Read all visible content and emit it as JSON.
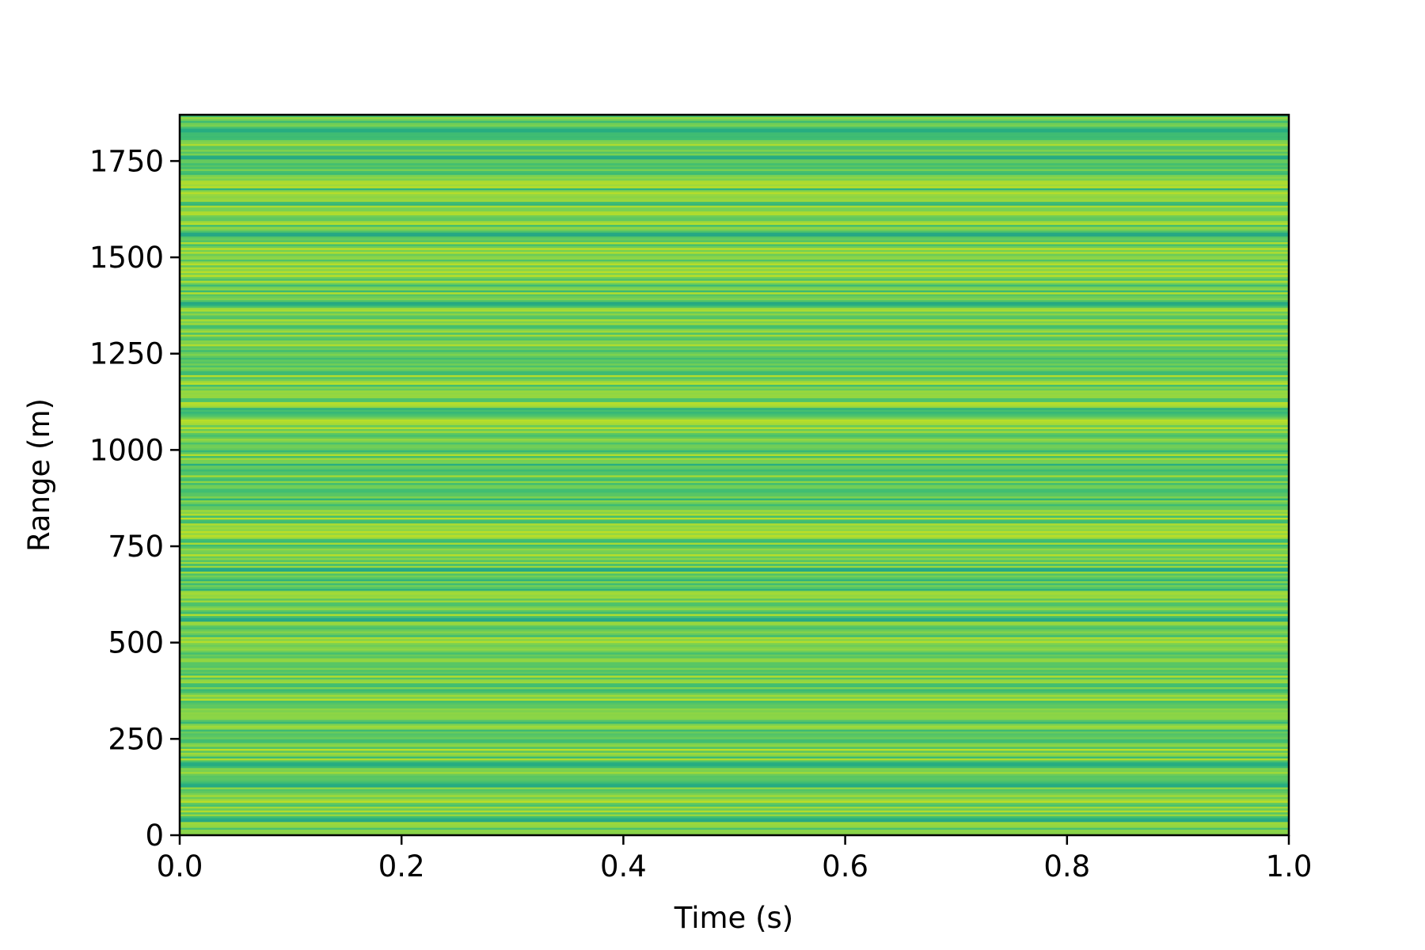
{
  "chart_data": {
    "type": "heatmap",
    "title": "",
    "xlabel": "Time (s)",
    "ylabel": "Range (m)",
    "xlim": [
      0.0,
      1.0
    ],
    "ylim": [
      0,
      1870
    ],
    "x_ticks": [
      0.0,
      0.2,
      0.4,
      0.6,
      0.8,
      1.0
    ],
    "x_tick_labels": [
      "0.0",
      "0.2",
      "0.4",
      "0.6",
      "0.8",
      "1.0"
    ],
    "y_ticks": [
      0,
      250,
      500,
      750,
      1000,
      1250,
      1500,
      1750
    ],
    "y_tick_labels": [
      "0",
      "250",
      "500",
      "750",
      "1000",
      "1250",
      "1500",
      "1750"
    ],
    "colormap": "viridis",
    "grid": false,
    "legend": false,
    "range_bin_count": 374,
    "pattern": "values constant along time; vary only with range",
    "normalized_value_range": [
      0.6,
      0.9
    ],
    "notable_low_value_bands_m": [
      40,
      130,
      185,
      560,
      690,
      1380,
      1560,
      1760,
      1830
    ]
  }
}
